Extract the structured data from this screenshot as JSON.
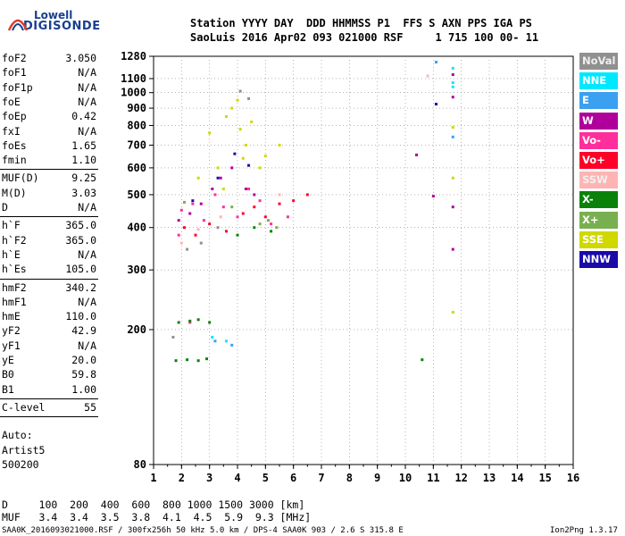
{
  "logo": {
    "line1": "Lowell",
    "line2": "DIGISONDE"
  },
  "header": {
    "line1": "Station YYYY DAY  DDD HHMMSS P1  FFS S AXN PPS IGA PS",
    "line2": "SaoLuis 2016 Apr02 093 021000 RSF     1 715 100 00- 11"
  },
  "params": [
    {
      "name": "foF2",
      "value": "3.050"
    },
    {
      "name": "foF1",
      "value": "N/A"
    },
    {
      "name": "foF1p",
      "value": "N/A"
    },
    {
      "name": "foE",
      "value": "N/A"
    },
    {
      "name": "foEp",
      "value": "0.42"
    },
    {
      "name": "fxI",
      "value": "N/A"
    },
    {
      "name": "foEs",
      "value": "1.65"
    },
    {
      "name": "fmin",
      "value": "1.10"
    },
    {
      "name": "MUF(D)",
      "value": "9.25"
    },
    {
      "name": "M(D)",
      "value": "3.03"
    },
    {
      "name": "D",
      "value": "N/A"
    },
    {
      "name": "h`F",
      "value": "365.0"
    },
    {
      "name": "h`F2",
      "value": "365.0"
    },
    {
      "name": "h`E",
      "value": "N/A"
    },
    {
      "name": "h`Es",
      "value": "105.0"
    },
    {
      "name": "hmF2",
      "value": "340.2"
    },
    {
      "name": "hmF1",
      "value": "N/A"
    },
    {
      "name": "hmE",
      "value": "110.0"
    },
    {
      "name": "yF2",
      "value": "42.9"
    },
    {
      "name": "yF1",
      "value": "N/A"
    },
    {
      "name": "yE",
      "value": "20.0"
    },
    {
      "name": "B0",
      "value": "59.8"
    },
    {
      "name": "B1",
      "value": "1.00"
    },
    {
      "name": "C-level",
      "value": "55"
    }
  ],
  "auto": {
    "label": "Auto:",
    "artist": "Artist5",
    "code": "500200"
  },
  "legend": [
    {
      "label": "NoVal",
      "color": "#909090"
    },
    {
      "label": "NNE",
      "color": "#00e8ff"
    },
    {
      "label": "E",
      "color": "#3ca0f0"
    },
    {
      "label": "W",
      "color": "#b0009c"
    },
    {
      "label": "Vo-",
      "color": "#ff2e9c"
    },
    {
      "label": "Vo+",
      "color": "#ff0028"
    },
    {
      "label": "SSW",
      "color": "#ffb4b4"
    },
    {
      "label": "X-",
      "color": "#0a820a"
    },
    {
      "label": "X+",
      "color": "#78b050"
    },
    {
      "label": "SSE",
      "color": "#d0d800"
    },
    {
      "label": "NNW",
      "color": "#1a0aa8"
    }
  ],
  "chart_data": {
    "type": "scatter",
    "xlim": [
      1,
      16
    ],
    "x_ticks": [
      1,
      2,
      3,
      4,
      5,
      6,
      7,
      8,
      9,
      10,
      11,
      12,
      13,
      14,
      15,
      16
    ],
    "ylim": [
      80,
      1280
    ],
    "y_ticks": [
      80,
      200,
      300,
      400,
      500,
      600,
      700,
      800,
      900,
      1000,
      1100,
      1280
    ],
    "y_scale": "log",
    "grid": true,
    "series": [
      {
        "name": "SSE",
        "color": "#d0d800",
        "points": [
          [
            3.6,
            850
          ],
          [
            3.8,
            900
          ],
          [
            4.0,
            950
          ],
          [
            4.1,
            780
          ],
          [
            4.3,
            700
          ],
          [
            4.5,
            820
          ],
          [
            4.8,
            600
          ],
          [
            5.0,
            650
          ],
          [
            5.5,
            700
          ],
          [
            3.3,
            600
          ],
          [
            3.5,
            520
          ],
          [
            4.2,
            640
          ],
          [
            2.6,
            560
          ],
          [
            3.0,
            760
          ],
          [
            11.7,
            790
          ],
          [
            11.7,
            560
          ],
          [
            11.7,
            225
          ]
        ]
      },
      {
        "name": "Vo-",
        "color": "#ff2e9c",
        "points": [
          [
            2.0,
            450
          ],
          [
            2.4,
            470
          ],
          [
            2.8,
            420
          ],
          [
            3.2,
            500
          ],
          [
            3.5,
            460
          ],
          [
            4.0,
            430
          ],
          [
            4.4,
            520
          ],
          [
            4.8,
            480
          ],
          [
            5.2,
            410
          ],
          [
            1.9,
            380
          ],
          [
            2.3,
            210
          ],
          [
            5.8,
            430
          ]
        ]
      },
      {
        "name": "Vo+",
        "color": "#ff0028",
        "points": [
          [
            2.1,
            400
          ],
          [
            2.5,
            380
          ],
          [
            3.0,
            410
          ],
          [
            3.6,
            390
          ],
          [
            4.2,
            440
          ],
          [
            4.6,
            460
          ],
          [
            5.0,
            430
          ],
          [
            5.5,
            470
          ],
          [
            6.0,
            480
          ],
          [
            6.5,
            500
          ]
        ]
      },
      {
        "name": "W",
        "color": "#b0009c",
        "points": [
          [
            1.9,
            420
          ],
          [
            2.3,
            440
          ],
          [
            2.7,
            470
          ],
          [
            3.1,
            520
          ],
          [
            3.4,
            560
          ],
          [
            3.8,
            600
          ],
          [
            4.3,
            520
          ],
          [
            4.6,
            500
          ],
          [
            10.4,
            655
          ],
          [
            11.0,
            495
          ],
          [
            11.7,
            460
          ],
          [
            11.7,
            345
          ],
          [
            11.7,
            970
          ],
          [
            11.7,
            1130
          ]
        ]
      },
      {
        "name": "X-",
        "color": "#0a820a",
        "points": [
          [
            1.9,
            210
          ],
          [
            2.3,
            212
          ],
          [
            2.6,
            214
          ],
          [
            3.0,
            210
          ],
          [
            1.8,
            162
          ],
          [
            2.2,
            163
          ],
          [
            2.6,
            162
          ],
          [
            2.9,
            164
          ],
          [
            4.0,
            380
          ],
          [
            4.6,
            400
          ],
          [
            5.2,
            390
          ],
          [
            10.6,
            163
          ]
        ]
      },
      {
        "name": "X+",
        "color": "#78b050",
        "points": [
          [
            4.8,
            410
          ],
          [
            5.1,
            420
          ],
          [
            5.4,
            400
          ],
          [
            3.8,
            460
          ],
          [
            2.1,
            475
          ]
        ]
      },
      {
        "name": "NNE",
        "color": "#00e8ff",
        "points": [
          [
            11.7,
            1070
          ],
          [
            11.7,
            1040
          ],
          [
            11.7,
            1180
          ],
          [
            3.1,
            190
          ],
          [
            3.6,
            185
          ]
        ]
      },
      {
        "name": "E",
        "color": "#3ca0f0",
        "points": [
          [
            3.2,
            185
          ],
          [
            3.8,
            180
          ],
          [
            11.1,
            1230
          ],
          [
            11.7,
            740
          ]
        ]
      },
      {
        "name": "NNW",
        "color": "#1a0aa8",
        "points": [
          [
            2.4,
            480
          ],
          [
            3.3,
            560
          ],
          [
            3.9,
            660
          ],
          [
            4.4,
            610
          ],
          [
            11.1,
            925
          ]
        ]
      },
      {
        "name": "SSW",
        "color": "#ffb4b4",
        "points": [
          [
            2.0,
            360
          ],
          [
            2.6,
            395
          ],
          [
            3.4,
            430
          ],
          [
            5.5,
            500
          ],
          [
            10.8,
            1120
          ]
        ]
      },
      {
        "name": "NoVal",
        "color": "#909090",
        "points": [
          [
            2.2,
            345
          ],
          [
            2.7,
            360
          ],
          [
            3.3,
            400
          ],
          [
            4.1,
            1010
          ],
          [
            4.4,
            960
          ],
          [
            1.7,
            190
          ]
        ]
      }
    ]
  },
  "footer": {
    "line1": "D     100  200  400  600  800 1000 1500 3000 [km]",
    "line2": "MUF   3.4  3.4  3.5  3.8  4.1  4.5  5.9  9.3 [MHz]",
    "line3": "SAA0K_2016093021000.RSF / 300fx256h 50 kHz 5.0 km / DPS-4 SAA0K 903 / 2.6 S 315.8 E",
    "version": "Ion2Png 1.3.17"
  }
}
